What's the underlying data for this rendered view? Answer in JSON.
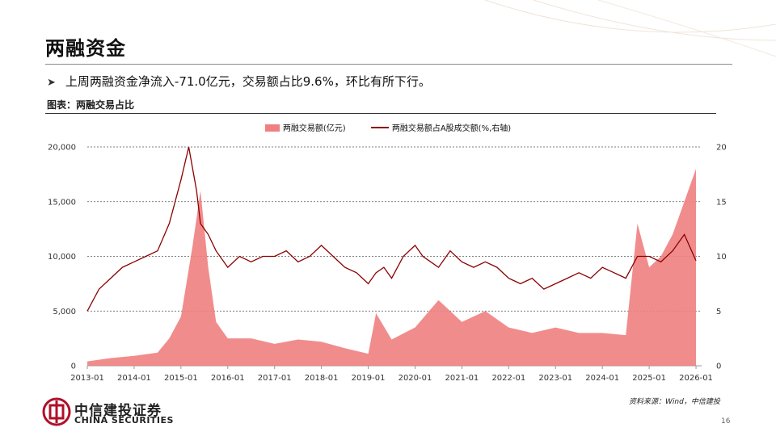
{
  "slide": {
    "title": "两融资金",
    "bullet": "上周两融资金净流入-71.0亿元，交易额占比9.6%，环比有所下行。",
    "figure_label": "图表：两融交易占比",
    "source": "资料来源：Wind，中信建投",
    "page_number": "16",
    "brand_cn": "中信建投证券",
    "brand_en": "CHINA SECURITIES"
  },
  "colors": {
    "area": "#f08080",
    "line": "#8b0000",
    "brand": "#b0102a"
  },
  "chart_data": {
    "type": "area",
    "series": [
      {
        "name": "两融交易额(亿元)",
        "type": "area",
        "axis": "left",
        "x": [
          "2013-01",
          "2013-07",
          "2014-01",
          "2014-07",
          "2014-10",
          "2015-01",
          "2015-04",
          "2015-06",
          "2015-08",
          "2015-10",
          "2016-01",
          "2016-07",
          "2017-01",
          "2017-07",
          "2018-01",
          "2018-07",
          "2019-01",
          "2019-03",
          "2019-07",
          "2020-01",
          "2020-07",
          "2021-01",
          "2021-07",
          "2022-01",
          "2022-07",
          "2023-01",
          "2023-07",
          "2024-01",
          "2024-07",
          "2024-10",
          "2025-01",
          "2025-04",
          "2025-07",
          "2025-10",
          "2026-01"
        ],
        "values": [
          400,
          700,
          900,
          1200,
          2500,
          4500,
          11000,
          16000,
          9000,
          4000,
          2500,
          2500,
          2000,
          2400,
          2200,
          1600,
          1100,
          4800,
          2400,
          3500,
          6000,
          4000,
          5000,
          3500,
          3000,
          3500,
          3000,
          3000,
          2800,
          13000,
          9000,
          10000,
          12000,
          15000,
          18000
        ]
      },
      {
        "name": "两融交易额占A股成交额(%,右轴)",
        "type": "line",
        "axis": "right",
        "x": [
          "2013-01",
          "2013-04",
          "2013-07",
          "2013-10",
          "2014-01",
          "2014-04",
          "2014-07",
          "2014-10",
          "2015-01",
          "2015-03",
          "2015-05",
          "2015-06",
          "2015-08",
          "2015-10",
          "2016-01",
          "2016-04",
          "2016-07",
          "2016-10",
          "2017-01",
          "2017-04",
          "2017-07",
          "2017-10",
          "2018-01",
          "2018-04",
          "2018-07",
          "2018-10",
          "2019-01",
          "2019-03",
          "2019-05",
          "2019-07",
          "2019-10",
          "2020-01",
          "2020-03",
          "2020-05",
          "2020-07",
          "2020-10",
          "2021-01",
          "2021-04",
          "2021-07",
          "2021-10",
          "2022-01",
          "2022-04",
          "2022-07",
          "2022-10",
          "2023-01",
          "2023-04",
          "2023-07",
          "2023-10",
          "2024-01",
          "2024-04",
          "2024-07",
          "2024-10",
          "2025-01",
          "2025-04",
          "2025-07",
          "2025-10",
          "2026-01"
        ],
        "values": [
          5,
          7,
          8,
          9,
          9.5,
          10,
          10.5,
          13,
          17,
          20,
          16,
          13,
          12,
          10.5,
          9,
          10,
          9.5,
          10,
          10,
          10.5,
          9.5,
          10,
          11,
          10,
          9,
          8.5,
          7.5,
          8.5,
          9,
          8,
          10,
          11,
          10,
          9.5,
          9,
          10.5,
          9.5,
          9,
          9.5,
          9,
          8,
          7.5,
          8,
          7,
          7.5,
          8,
          8.5,
          8,
          9,
          8.5,
          8,
          10,
          10,
          9.5,
          10.5,
          12,
          9.6
        ]
      }
    ],
    "y_left": {
      "min": 0,
      "max": 20000,
      "ticks": [
        0,
        5000,
        10000,
        15000,
        20000
      ],
      "tick_labels": [
        "0",
        "5,000",
        "10,000",
        "15,000",
        "20,000"
      ]
    },
    "y_right": {
      "min": 0,
      "max": 20,
      "ticks": [
        0,
        5,
        10,
        15,
        20
      ]
    },
    "x_tick_labels": [
      "2013-01",
      "2014-01",
      "2015-01",
      "2016-01",
      "2017-01",
      "2018-01",
      "2019-01",
      "2020-01",
      "2021-01",
      "2022-01",
      "2023-01",
      "2024-01",
      "2025-01",
      "2026-01"
    ],
    "grid": true,
    "legend_position": "top"
  }
}
